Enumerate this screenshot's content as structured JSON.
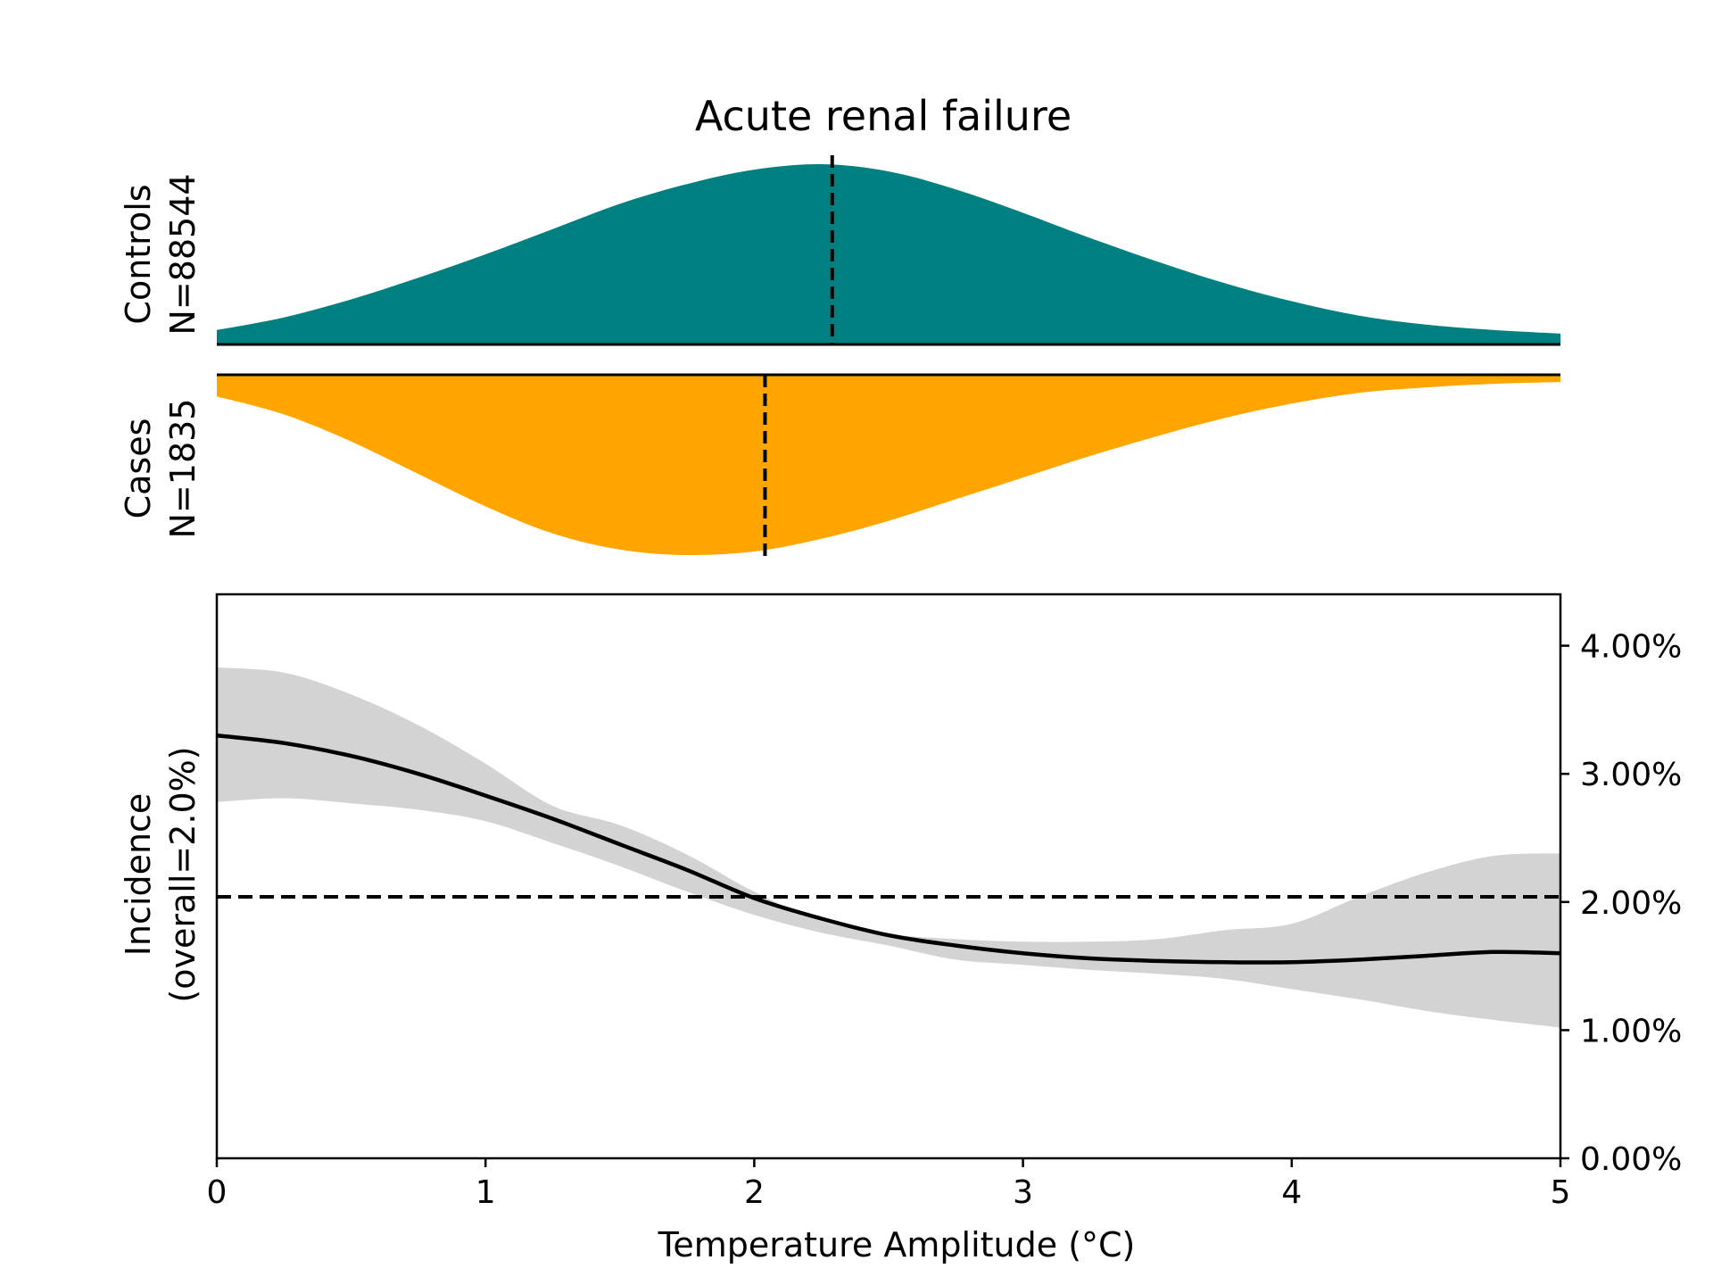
{
  "chart_data": [
    {
      "type": "area",
      "title": "Acute renal failure",
      "ylabel": [
        "Controls",
        "N=88544"
      ],
      "xlim": [
        0,
        5
      ],
      "series": [
        {
          "name": "",
          "x": [
            0,
            0.25,
            0.5,
            0.75,
            1,
            1.25,
            1.5,
            1.75,
            2,
            2.25,
            2.5,
            2.75,
            3,
            3.25,
            3.5,
            3.75,
            4,
            4.25,
            4.5,
            4.75,
            5
          ],
          "values": [
            0.08,
            0.15,
            0.25,
            0.37,
            0.5,
            0.64,
            0.78,
            0.89,
            0.97,
            1.0,
            0.96,
            0.86,
            0.73,
            0.59,
            0.46,
            0.34,
            0.24,
            0.16,
            0.11,
            0.08,
            0.06
          ],
          "color": "#008080"
        }
      ],
      "median_line": 2.29
    },
    {
      "type": "area",
      "ylabel": [
        "Cases",
        "N=1835"
      ],
      "xlim": [
        0,
        5
      ],
      "series": [
        {
          "name": "",
          "x": [
            0,
            0.25,
            0.5,
            0.75,
            1,
            1.25,
            1.5,
            1.75,
            2,
            2.25,
            2.5,
            2.75,
            3,
            3.25,
            3.5,
            3.75,
            4,
            4.25,
            4.5,
            4.75,
            5
          ],
          "values": [
            0.12,
            0.22,
            0.37,
            0.55,
            0.73,
            0.88,
            0.97,
            1.0,
            0.98,
            0.91,
            0.81,
            0.69,
            0.57,
            0.45,
            0.34,
            0.24,
            0.16,
            0.1,
            0.07,
            0.05,
            0.04
          ],
          "color": "#ffa500"
        }
      ],
      "median_line": 2.04
    },
    {
      "type": "line",
      "xlabel": "Temperature Amplitude (°C)",
      "ylabel": [
        "Incidence",
        "(overall=2.0%)"
      ],
      "xlim": [
        0,
        5
      ],
      "ylim": [
        0,
        4.4
      ],
      "x_ticks": [
        "0",
        "1",
        "2",
        "3",
        "4",
        "5"
      ],
      "y_ticks": [
        "0.00%",
        "1.00%",
        "2.00%",
        "3.00%",
        "4.00%"
      ],
      "series": [
        {
          "name": "",
          "x": [
            0,
            0.25,
            0.5,
            0.75,
            1,
            1.25,
            1.5,
            1.75,
            2,
            2.25,
            2.5,
            2.75,
            3,
            3.25,
            3.5,
            3.75,
            4,
            4.25,
            4.5,
            4.75,
            5
          ],
          "values": [
            3.3,
            3.24,
            3.14,
            3.0,
            2.83,
            2.65,
            2.45,
            2.25,
            2.03,
            1.87,
            1.74,
            1.66,
            1.6,
            1.56,
            1.54,
            1.53,
            1.53,
            1.55,
            1.58,
            1.61,
            1.6
          ],
          "lower": [
            2.78,
            2.81,
            2.77,
            2.72,
            2.63,
            2.46,
            2.28,
            2.08,
            1.9,
            1.76,
            1.66,
            1.55,
            1.51,
            1.47,
            1.44,
            1.4,
            1.32,
            1.24,
            1.15,
            1.08,
            1.02
          ],
          "upper": [
            3.83,
            3.79,
            3.62,
            3.38,
            3.08,
            2.75,
            2.6,
            2.37,
            2.08,
            1.85,
            1.75,
            1.71,
            1.69,
            1.69,
            1.71,
            1.78,
            1.83,
            2.04,
            2.23,
            2.36,
            2.38
          ],
          "color": "#000000",
          "band_color": "#d3d3d3"
        }
      ],
      "reference_line": 2.04
    }
  ]
}
